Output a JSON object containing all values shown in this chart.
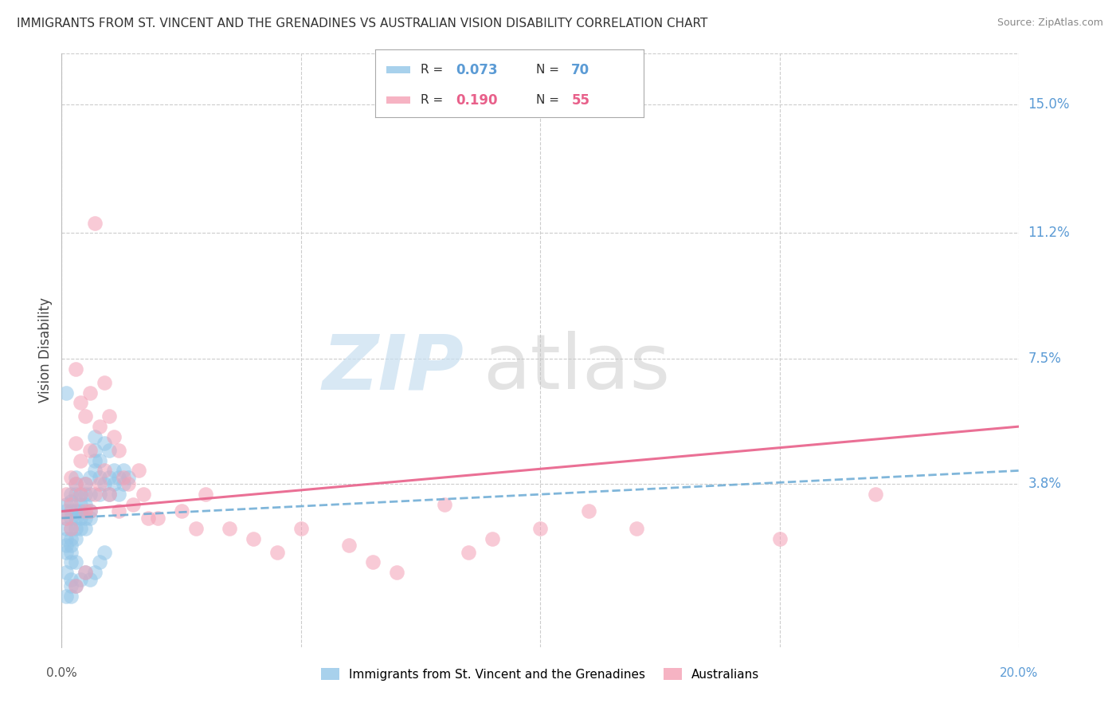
{
  "title": "IMMIGRANTS FROM ST. VINCENT AND THE GRENADINES VS AUSTRALIAN VISION DISABILITY CORRELATION CHART",
  "source": "Source: ZipAtlas.com",
  "ylabel": "Vision Disability",
  "x_min": 0.0,
  "x_max": 0.2,
  "y_min": -0.01,
  "y_max": 0.165,
  "yticks": [
    0.038,
    0.075,
    0.112,
    0.15
  ],
  "ytick_labels": [
    "3.8%",
    "7.5%",
    "11.2%",
    "15.0%"
  ],
  "xticks": [
    0.0,
    0.05,
    0.1,
    0.15,
    0.2
  ],
  "color_blue": "#93C6E8",
  "color_pink": "#F4A0B5",
  "color_blue_text": "#5B9BD5",
  "color_pink_text": "#E8608A",
  "color_trendline_blue": "#6aaad4",
  "color_trendline_pink": "#e8608a",
  "blue_scatter_x": [
    0.001,
    0.001,
    0.001,
    0.001,
    0.001,
    0.001,
    0.001,
    0.002,
    0.002,
    0.002,
    0.002,
    0.002,
    0.002,
    0.002,
    0.002,
    0.002,
    0.003,
    0.003,
    0.003,
    0.003,
    0.003,
    0.003,
    0.003,
    0.004,
    0.004,
    0.004,
    0.004,
    0.004,
    0.005,
    0.005,
    0.005,
    0.005,
    0.005,
    0.006,
    0.006,
    0.006,
    0.006,
    0.007,
    0.007,
    0.007,
    0.007,
    0.008,
    0.008,
    0.008,
    0.009,
    0.009,
    0.01,
    0.01,
    0.01,
    0.011,
    0.011,
    0.012,
    0.012,
    0.013,
    0.013,
    0.014,
    0.001,
    0.001,
    0.002,
    0.002,
    0.003,
    0.003,
    0.004,
    0.005,
    0.006,
    0.007,
    0.008,
    0.009,
    0.001,
    0.002
  ],
  "blue_scatter_y": [
    0.028,
    0.03,
    0.025,
    0.022,
    0.02,
    0.018,
    0.032,
    0.03,
    0.028,
    0.025,
    0.022,
    0.02,
    0.033,
    0.018,
    0.035,
    0.015,
    0.03,
    0.028,
    0.025,
    0.022,
    0.035,
    0.038,
    0.04,
    0.03,
    0.028,
    0.032,
    0.035,
    0.025,
    0.028,
    0.032,
    0.025,
    0.035,
    0.038,
    0.03,
    0.028,
    0.035,
    0.04,
    0.048,
    0.045,
    0.052,
    0.042,
    0.04,
    0.045,
    0.035,
    0.038,
    0.05,
    0.035,
    0.04,
    0.048,
    0.038,
    0.042,
    0.04,
    0.035,
    0.038,
    0.042,
    0.04,
    0.012,
    0.065,
    0.01,
    0.008,
    0.015,
    0.008,
    0.01,
    0.012,
    0.01,
    0.012,
    0.015,
    0.018,
    0.005,
    0.005
  ],
  "pink_scatter_x": [
    0.001,
    0.001,
    0.002,
    0.002,
    0.002,
    0.003,
    0.003,
    0.003,
    0.004,
    0.004,
    0.004,
    0.005,
    0.005,
    0.005,
    0.006,
    0.006,
    0.006,
    0.007,
    0.007,
    0.008,
    0.008,
    0.009,
    0.009,
    0.01,
    0.01,
    0.011,
    0.012,
    0.012,
    0.013,
    0.014,
    0.015,
    0.016,
    0.017,
    0.018,
    0.02,
    0.025,
    0.028,
    0.03,
    0.035,
    0.04,
    0.045,
    0.05,
    0.06,
    0.065,
    0.07,
    0.08,
    0.085,
    0.09,
    0.1,
    0.11,
    0.12,
    0.15,
    0.17,
    0.003,
    0.005
  ],
  "pink_scatter_y": [
    0.035,
    0.028,
    0.04,
    0.032,
    0.025,
    0.072,
    0.05,
    0.038,
    0.062,
    0.045,
    0.035,
    0.058,
    0.038,
    0.03,
    0.065,
    0.048,
    0.03,
    0.115,
    0.035,
    0.055,
    0.038,
    0.068,
    0.042,
    0.058,
    0.035,
    0.052,
    0.048,
    0.03,
    0.04,
    0.038,
    0.032,
    0.042,
    0.035,
    0.028,
    0.028,
    0.03,
    0.025,
    0.035,
    0.025,
    0.022,
    0.018,
    0.025,
    0.02,
    0.015,
    0.012,
    0.032,
    0.018,
    0.022,
    0.025,
    0.03,
    0.025,
    0.022,
    0.035,
    0.008,
    0.012
  ],
  "blue_trendline_x0": 0.0,
  "blue_trendline_x1": 0.2,
  "blue_trendline_y0": 0.028,
  "blue_trendline_y1": 0.042,
  "pink_trendline_x0": 0.0,
  "pink_trendline_x1": 0.2,
  "pink_trendline_y0": 0.03,
  "pink_trendline_y1": 0.055,
  "legend_items": [
    {
      "label": "R = 0.073   N = 70",
      "color_box": "#93C6E8",
      "r_val": "0.073",
      "n_val": "70"
    },
    {
      "label": "R = 0.190   N = 55",
      "color_box": "#F4A0B5",
      "r_val": "0.190",
      "n_val": "55"
    }
  ]
}
